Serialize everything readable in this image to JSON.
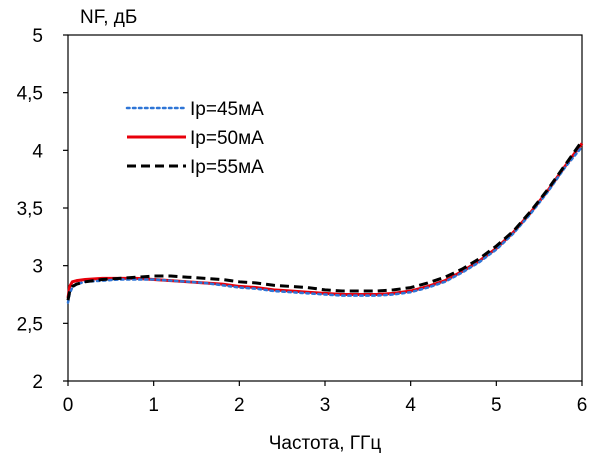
{
  "chart_data": {
    "type": "line",
    "title": "",
    "xlabel": "Частота, ГГц",
    "ylabel": "NF, дБ",
    "xlim": [
      0,
      6
    ],
    "ylim": [
      2,
      5
    ],
    "x_ticks": [
      0,
      1,
      2,
      3,
      4,
      5,
      6
    ],
    "x_tick_labels": [
      "0",
      "1",
      "2",
      "3",
      "4",
      "5",
      "6"
    ],
    "y_ticks": [
      2,
      2.5,
      3,
      3.5,
      4,
      4.5,
      5
    ],
    "y_tick_labels": [
      "2",
      "2,5",
      "3",
      "3,5",
      "4",
      "4,5",
      "5"
    ],
    "grid": false,
    "legend_position": "top-left",
    "series": [
      {
        "name": "Ip=45мА",
        "color": "#2e75d6",
        "style": "dotted",
        "x": [
          0,
          0.02,
          0.05,
          0.1,
          0.2,
          0.4,
          0.6,
          0.8,
          1.0,
          1.2,
          1.4,
          1.6,
          1.8,
          2.0,
          2.2,
          2.4,
          2.6,
          2.8,
          3.0,
          3.2,
          3.4,
          3.6,
          3.8,
          4.0,
          4.2,
          4.4,
          4.6,
          4.8,
          5.0,
          5.2,
          5.4,
          5.6,
          5.8,
          6.0
        ],
        "y": [
          2.68,
          2.76,
          2.81,
          2.84,
          2.86,
          2.87,
          2.88,
          2.88,
          2.88,
          2.87,
          2.86,
          2.85,
          2.83,
          2.81,
          2.8,
          2.78,
          2.77,
          2.76,
          2.75,
          2.74,
          2.74,
          2.74,
          2.75,
          2.77,
          2.81,
          2.86,
          2.94,
          3.03,
          3.14,
          3.28,
          3.45,
          3.64,
          3.85,
          4.03
        ]
      },
      {
        "name": "Ip=50мА",
        "color": "#e8000b",
        "style": "solid",
        "x": [
          0,
          0.02,
          0.05,
          0.1,
          0.2,
          0.4,
          0.6,
          0.8,
          1.0,
          1.2,
          1.4,
          1.6,
          1.8,
          2.0,
          2.2,
          2.4,
          2.6,
          2.8,
          3.0,
          3.2,
          3.4,
          3.6,
          3.8,
          4.0,
          4.2,
          4.4,
          4.6,
          4.8,
          5.0,
          5.2,
          5.4,
          5.6,
          5.8,
          6.0
        ],
        "y": [
          2.72,
          2.82,
          2.86,
          2.87,
          2.88,
          2.89,
          2.89,
          2.89,
          2.88,
          2.87,
          2.86,
          2.85,
          2.84,
          2.82,
          2.81,
          2.79,
          2.78,
          2.77,
          2.76,
          2.75,
          2.75,
          2.75,
          2.76,
          2.78,
          2.82,
          2.87,
          2.95,
          3.04,
          3.15,
          3.29,
          3.46,
          3.65,
          3.86,
          4.06
        ]
      },
      {
        "name": "Ip=55мА",
        "color": "#000000",
        "style": "dashed",
        "x": [
          0,
          0.02,
          0.05,
          0.1,
          0.2,
          0.4,
          0.6,
          0.8,
          1.0,
          1.2,
          1.4,
          1.6,
          1.8,
          2.0,
          2.2,
          2.4,
          2.6,
          2.8,
          3.0,
          3.2,
          3.4,
          3.6,
          3.8,
          4.0,
          4.2,
          4.4,
          4.6,
          4.8,
          5.0,
          5.2,
          5.4,
          5.6,
          5.8,
          6.0
        ],
        "y": [
          2.7,
          2.78,
          2.82,
          2.84,
          2.86,
          2.88,
          2.89,
          2.9,
          2.91,
          2.91,
          2.9,
          2.89,
          2.88,
          2.86,
          2.85,
          2.83,
          2.82,
          2.81,
          2.79,
          2.78,
          2.78,
          2.78,
          2.79,
          2.81,
          2.85,
          2.9,
          2.97,
          3.06,
          3.17,
          3.3,
          3.47,
          3.66,
          3.87,
          4.08
        ]
      }
    ]
  }
}
